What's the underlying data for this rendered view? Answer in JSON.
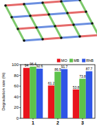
{
  "chart_data": {
    "type": "bar",
    "y_label": "Degradation rate (%)",
    "categories": [
      "1",
      "2",
      "3"
    ],
    "series": [
      {
        "name": "MO",
        "color": "#e8141c",
        "values": [
          94,
          61.2,
          53.8
        ]
      },
      {
        "name": "MB",
        "color": "#5dc24b",
        "values": [
          96.4,
          86.9,
          73.8
        ]
      },
      {
        "name": "RhB",
        "color": "#2e55e6",
        "values": [
          92.6,
          91.7,
          87.7
        ]
      }
    ],
    "ylim": [
      0,
      100
    ],
    "yticks": [
      0,
      20,
      40,
      60,
      80,
      100
    ],
    "legend": "top right",
    "data_labels": true
  }
}
